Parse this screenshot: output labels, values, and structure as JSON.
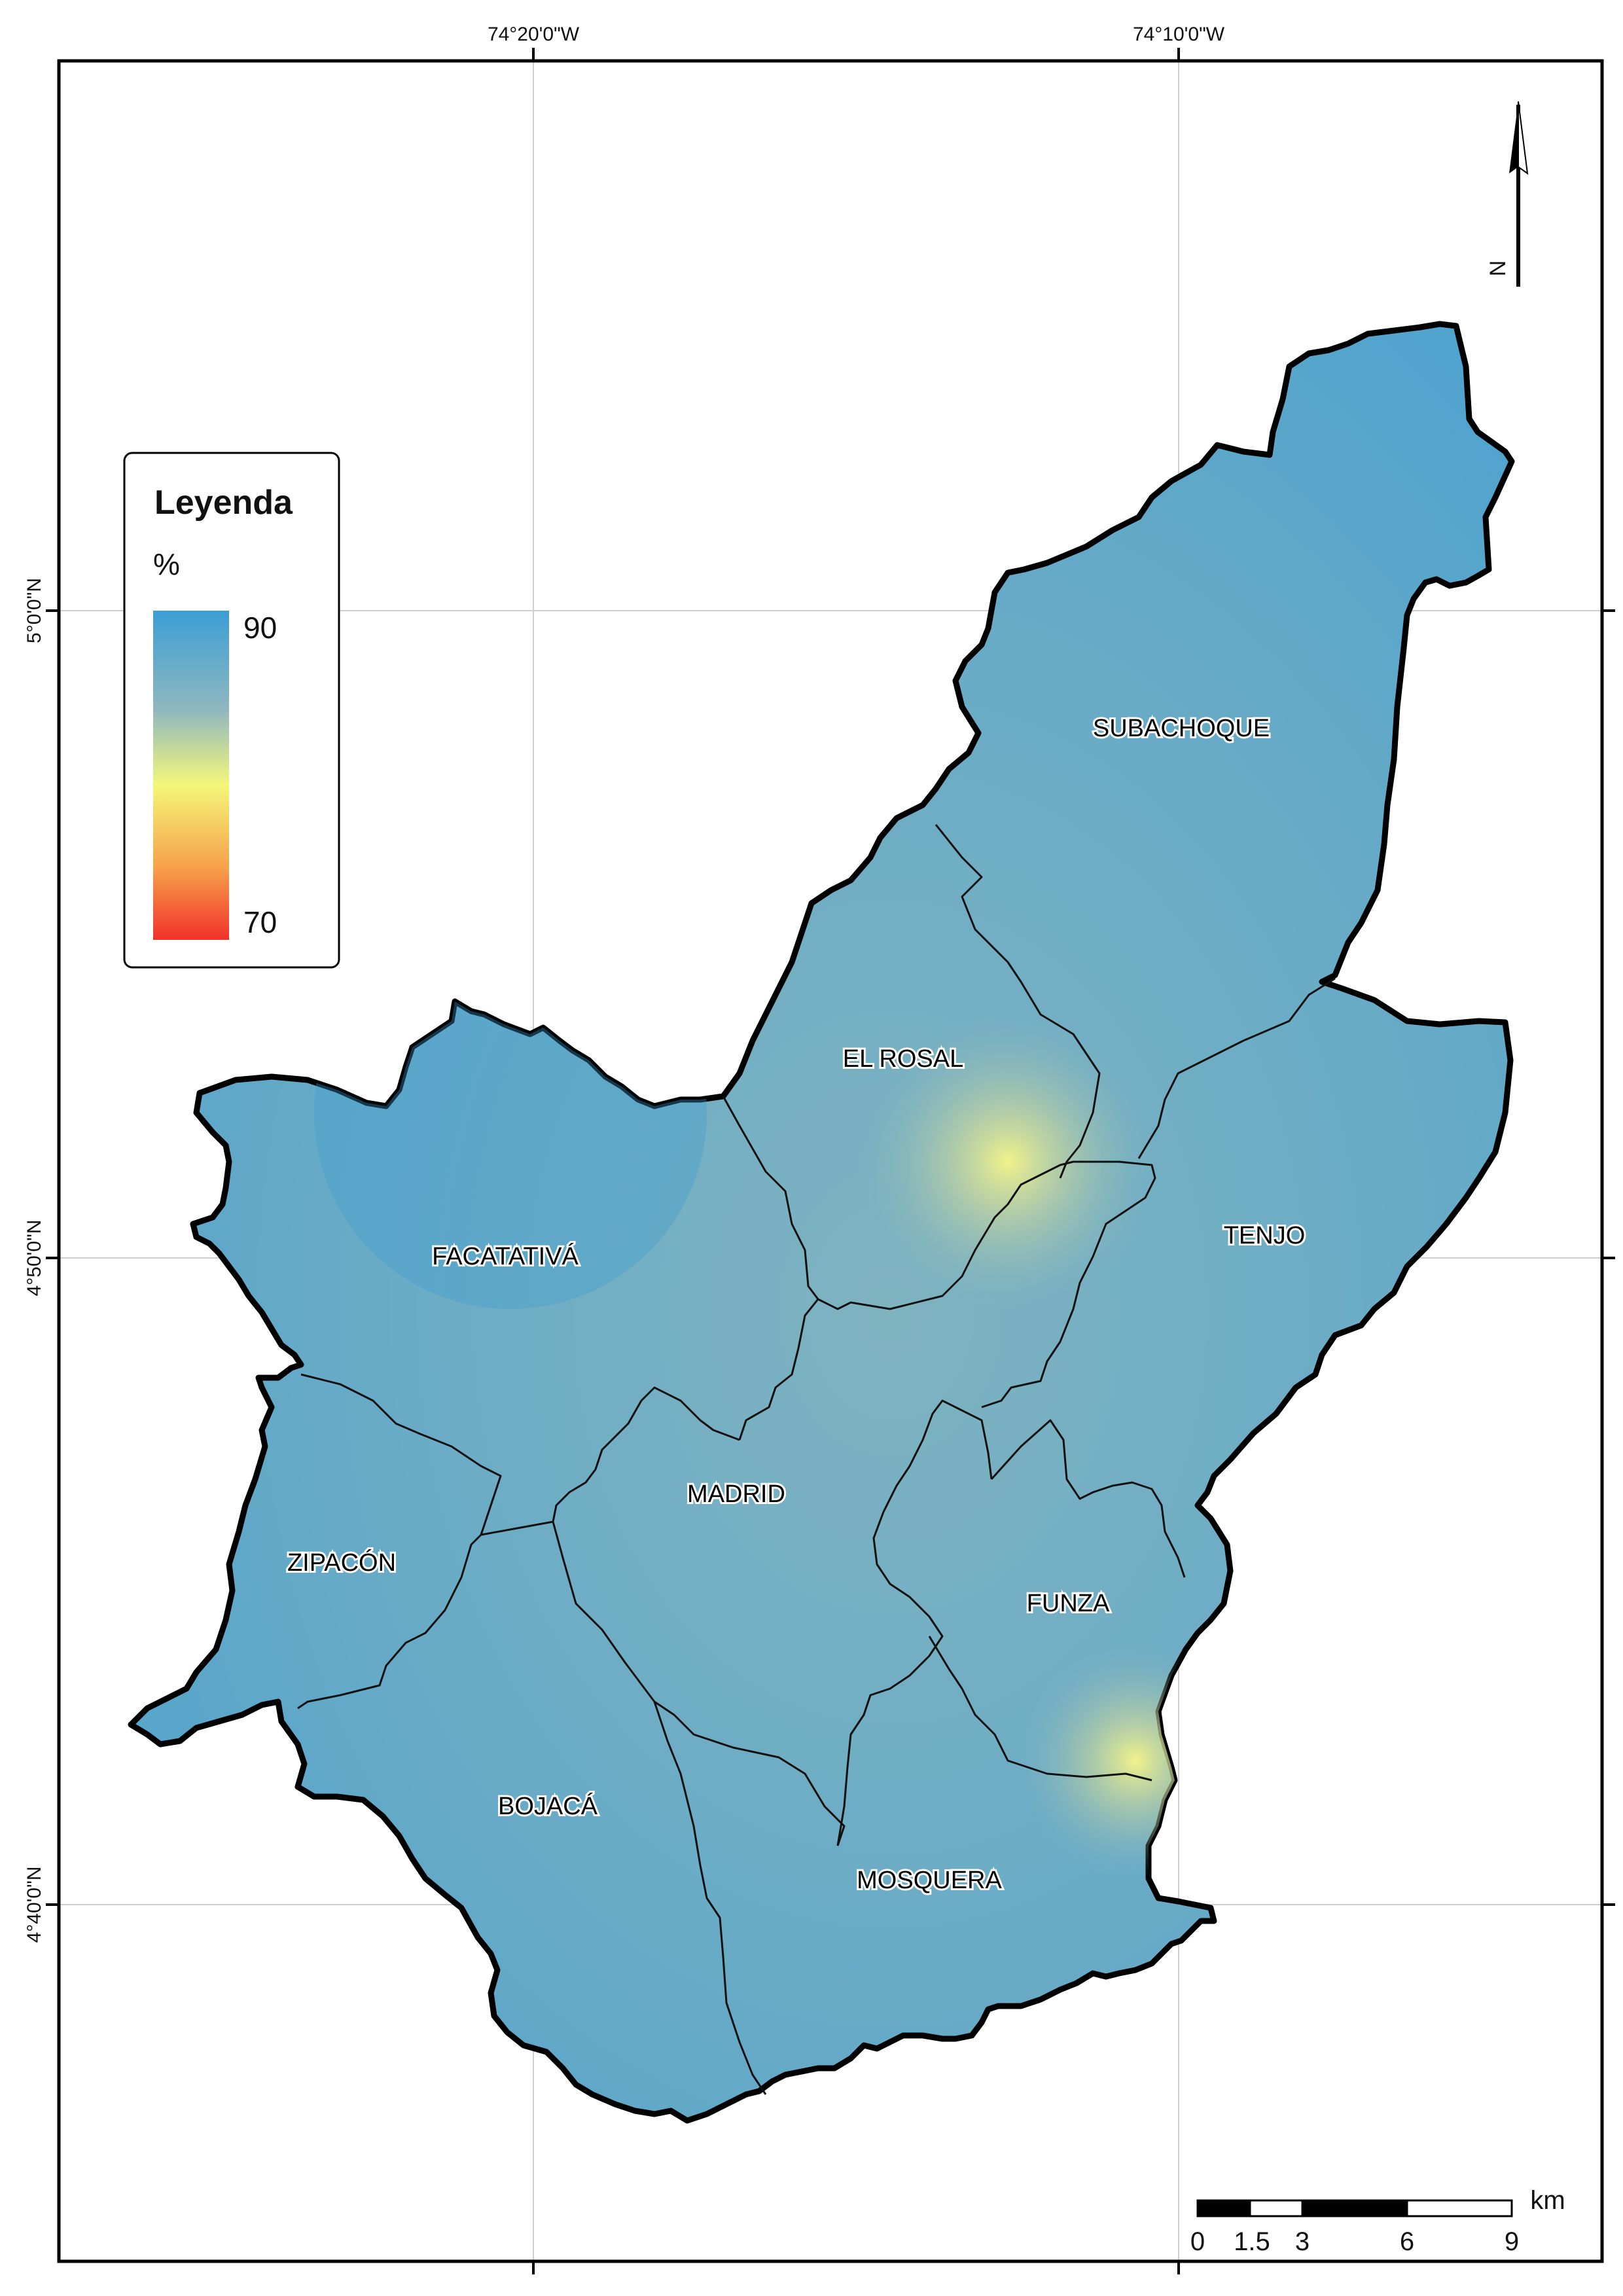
{
  "coordinates": {
    "lon_ticks": [
      "74°20'0\"W",
      "74°10'0\"W"
    ],
    "lat_ticks": [
      "5°0'0\"N",
      "4°50'0\"N",
      "4°40'0\"N"
    ]
  },
  "legend": {
    "title": "Leyenda",
    "unit": "%",
    "max_label": "90",
    "min_label": "70",
    "colors": [
      "#3b9fd4",
      "#8fb7bf",
      "#f4f77a",
      "#f7a14a",
      "#f0322b"
    ]
  },
  "municipalities": [
    {
      "key": "subachoque",
      "label": "SUBACHOQUE"
    },
    {
      "key": "el_rosal",
      "label": "EL ROSAL"
    },
    {
      "key": "tenjo",
      "label": "TENJO"
    },
    {
      "key": "facatativa",
      "label": "FACATATIVÁ"
    },
    {
      "key": "madrid",
      "label": "MADRID"
    },
    {
      "key": "zipacon",
      "label": "ZIPACÓN"
    },
    {
      "key": "funza",
      "label": "FUNZA"
    },
    {
      "key": "bojaca",
      "label": "BOJACÁ"
    },
    {
      "key": "mosquera",
      "label": "MOSQUERA"
    }
  ],
  "north_arrow": {
    "label": "N",
    "icon": "north-arrow-icon"
  },
  "scale_bar": {
    "unit": "km",
    "labels": [
      "0",
      "1.5",
      "3",
      "6",
      "9"
    ]
  },
  "map_colors": {
    "region_base": "#64a9c8",
    "region_hotspot": "#e8eb8a"
  }
}
